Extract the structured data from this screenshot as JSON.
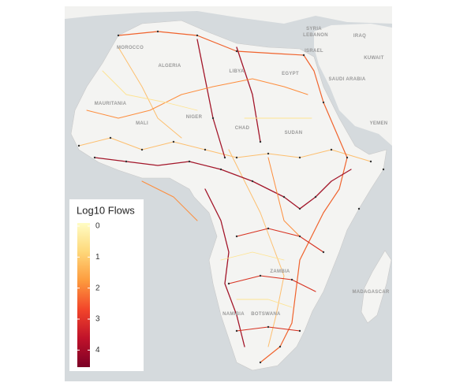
{
  "map": {
    "country_labels": [
      "SYRIA",
      "LEBANON",
      "IRAQ",
      "ISRAEL",
      "KUWAIT",
      "SAUDI ARABIA",
      "YEMEN",
      "MOROCCO",
      "ALGERIA",
      "LIBYA",
      "EGYPT",
      "MAURITANIA",
      "MALI",
      "NIGER",
      "CHAD",
      "SUDAN",
      "ZAMBIA",
      "NAMIBIA",
      "BOTSWANA",
      "MADAGASCAR"
    ],
    "legend": {
      "title": "Log10 Flows",
      "ticks": [
        0,
        1,
        2,
        3,
        4
      ],
      "lim": [
        -0.1,
        4.55
      ],
      "colors": [
        "#fffdc4",
        "#fed87a",
        "#fd9b3e",
        "#f2452a",
        "#c0122a",
        "#7c0026"
      ]
    }
  }
}
